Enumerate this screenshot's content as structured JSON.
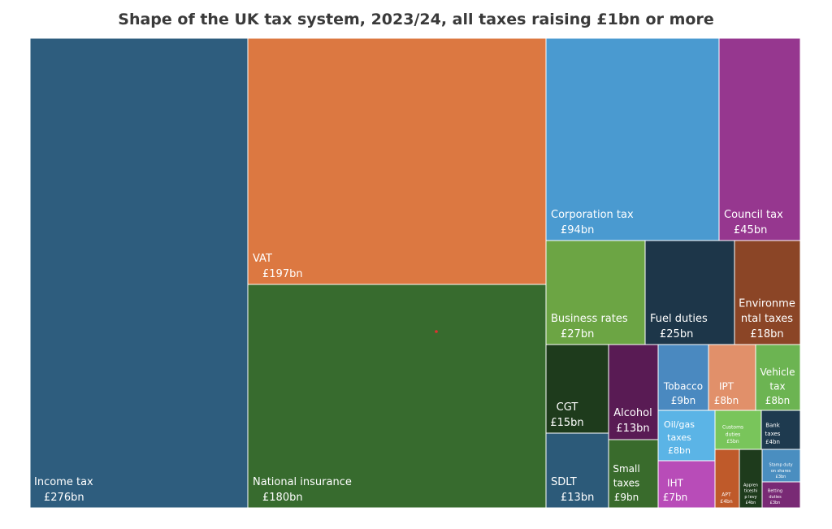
{
  "chart_data": {
    "type": "treemap",
    "title": "Shape of the UK tax system, 2023/24, all taxes raising £1bn or more",
    "units": "£bn",
    "tiles": [
      {
        "name": "Income tax",
        "value": 276,
        "label": "£276bn",
        "color": "#2E5D7E"
      },
      {
        "name": "VAT",
        "value": 197,
        "label": "£197bn",
        "color": "#DC7841"
      },
      {
        "name": "National insurance",
        "value": 180,
        "label": "£180bn",
        "color": "#376B2E"
      },
      {
        "name": "Corporation tax",
        "value": 94,
        "label": "£94bn",
        "color": "#4A9AD0"
      },
      {
        "name": "Council tax",
        "value": 45,
        "label": "£45bn",
        "color": "#96378F"
      },
      {
        "name": "Business rates",
        "value": 27,
        "label": "£27bn",
        "color": "#6CA544"
      },
      {
        "name": "Fuel duties",
        "value": 25,
        "label": "£25bn",
        "color": "#1D3649"
      },
      {
        "name": "Environmental taxes",
        "value": 18,
        "label": "£18bn",
        "color": "#8B4526"
      },
      {
        "name": "CGT",
        "value": 15,
        "label": "£15bn",
        "color": "#1E3B1C"
      },
      {
        "name": "Alcohol",
        "value": 13,
        "label": "£13bn",
        "color": "#591B54"
      },
      {
        "name": "Tobacco",
        "value": 9,
        "label": "£9bn",
        "color": "#4A89C0"
      },
      {
        "name": "IPT",
        "value": 8,
        "label": "£8bn",
        "color": "#E1906A"
      },
      {
        "name": "Vehicle tax",
        "value": 8,
        "label": "£8bn",
        "color": "#6CB452"
      },
      {
        "name": "SDLT",
        "value": 13,
        "label": "£13bn",
        "color": "#2C5A79"
      },
      {
        "name": "Small taxes",
        "value": 9,
        "label": "£9bn",
        "color": "#396B2C"
      },
      {
        "name": "Oil/gas taxes",
        "value": 8,
        "label": "£8bn",
        "color": "#5BB4E6"
      },
      {
        "name": "Customs duties",
        "value": 5,
        "label": "£5bn",
        "color": "#79C55B"
      },
      {
        "name": "Bank taxes",
        "value": 4,
        "label": "£4bn",
        "color": "#1E3A4F"
      },
      {
        "name": "IHT",
        "value": 7,
        "label": "£7bn",
        "color": "#B84CB8"
      },
      {
        "name": "APT",
        "value": 4,
        "label": "£4bn",
        "color": "#BF5A2A"
      },
      {
        "name": "Apprenticeship levy",
        "value": 4,
        "label": "£4bn",
        "color": "#1E3B1C"
      },
      {
        "name": "Stamp duty on shares",
        "value": 3,
        "label": "£3bn",
        "color": "#4A8EC0"
      },
      {
        "name": "Betting duties",
        "value": 3,
        "label": "£3bn",
        "color": "#792A75"
      }
    ]
  }
}
